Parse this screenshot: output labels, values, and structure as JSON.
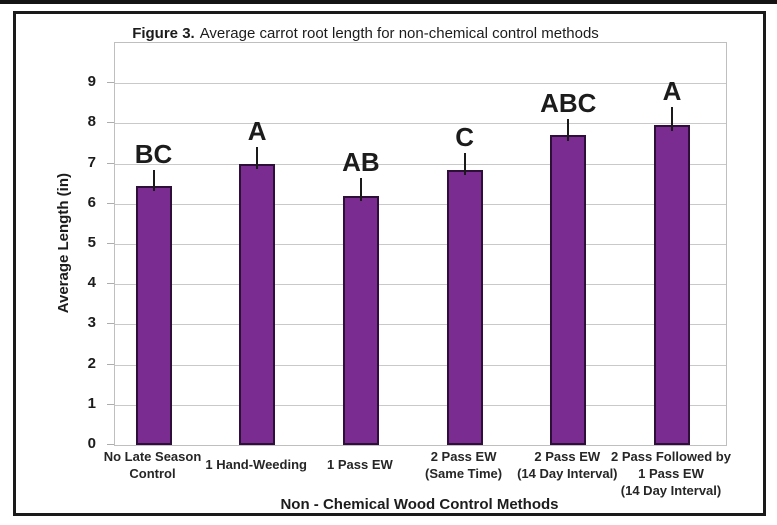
{
  "figure": {
    "title_bold": "Figure 3.",
    "title_rest": "Average carrot root length for non-chemical control methods"
  },
  "chart_data": {
    "type": "bar",
    "title": "Figure 3. Average carrot root length for non-chemical control methods",
    "xlabel": "Non - Chemical Wood Control Methods",
    "ylabel": "Average Length (in)",
    "ylim": [
      0,
      10
    ],
    "ytick_labels": [
      "0",
      "1",
      "2",
      "3",
      "4",
      "5",
      "6",
      "7",
      "8",
      "9"
    ],
    "grid": true,
    "legend_position": "none",
    "bar_color": "#7B2C90",
    "bar_border_color": "#2E0F3A",
    "categories": [
      "No Late Season Control",
      "1 Hand-Weeding",
      "1 Pass EW",
      "2 Pass EW (Same Time)",
      "2 Pass EW (14 Day Interval)",
      "2 Pass Followed by 1 Pass EW (14 Day Interval)"
    ],
    "category_lines": [
      [
        "No Late Season",
        "Control"
      ],
      [
        "1 Hand-Weeding"
      ],
      [
        "1 Pass EW"
      ],
      [
        "2 Pass EW",
        "(Same Time)"
      ],
      [
        "2 Pass EW",
        "(14 Day Interval)"
      ],
      [
        "2 Pass Followed by",
        "1 Pass EW",
        "(14 Day Interval)"
      ]
    ],
    "values": [
      6.45,
      7.0,
      6.2,
      6.85,
      7.7,
      7.95
    ],
    "error_up": [
      0.4,
      0.42,
      0.45,
      0.42,
      0.4,
      0.47
    ],
    "error_down": [
      0.14,
      0.14,
      0.14,
      0.14,
      0.14,
      0.14
    ],
    "significance_labels": [
      "BC",
      "A",
      "AB",
      "C",
      "ABC",
      "A"
    ]
  }
}
